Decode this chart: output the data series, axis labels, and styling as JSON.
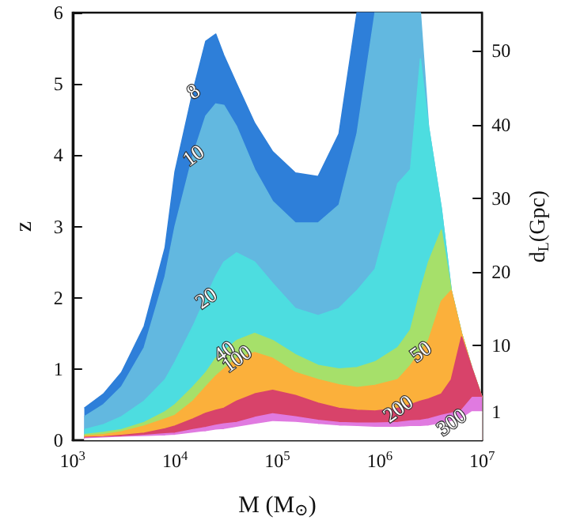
{
  "chart_data": {
    "type": "area",
    "stacked": true,
    "xlabel": "M (M$_{⊙}$)",
    "ylabel": "z",
    "y2label": "d$_{L}$(Gpc)",
    "log": "x",
    "grid": false,
    "xlim": [
      1000,
      10000000
    ],
    "xticks": [
      {
        "value": 1000,
        "label": "10$^{3}$"
      },
      {
        "value": 10000,
        "label": "10$^{4}$"
      },
      {
        "value": 100000,
        "label": "10$^{5}$"
      },
      {
        "value": 1000000,
        "label": "10$^{6}$"
      },
      {
        "value": 10000000,
        "label": "10$^{7}$"
      }
    ],
    "ylim": [
      0,
      6
    ],
    "yticks": [
      0,
      1,
      2,
      3,
      4,
      5,
      6
    ],
    "y2lim": [
      -2.9,
      55.2
    ],
    "y2ticks": [
      1,
      10,
      20,
      30,
      40,
      50
    ],
    "x": [
      1300,
      2000,
      3000,
      5000,
      8000,
      10000,
      15000,
      20000,
      25000,
      30000,
      40000,
      60000,
      90000,
      150000,
      250000,
      400000,
      600000,
      900000,
      1500000,
      2000000,
      2500000,
      3000000,
      4000000,
      5000000,
      6300000,
      8000000,
      10000000
    ],
    "series": [
      {
        "color": "#ffffff",
        "values": [
          0.02,
          0.03,
          0.04,
          0.05,
          0.06,
          0.07,
          0.1,
          0.12,
          0.14,
          0.15,
          0.18,
          0.22,
          0.26,
          0.25,
          0.22,
          0.2,
          0.19,
          0.18,
          0.18,
          0.19,
          0.19,
          0.2,
          0.23,
          0.26,
          0.3,
          0.4,
          0.4
        ]
      },
      {
        "color": "#e07ae0",
        "values": [
          0.01,
          0.01,
          0.01,
          0.02,
          0.03,
          0.03,
          0.05,
          0.06,
          0.07,
          0.08,
          0.07,
          0.1,
          0.11,
          0.08,
          0.06,
          0.05,
          0.05,
          0.06,
          0.07,
          0.08,
          0.09,
          0.1,
          0.12,
          0.12,
          0.12,
          0.2,
          0.2
        ]
      },
      {
        "color": "#d8436a",
        "values": [
          0.01,
          0.01,
          0.02,
          0.03,
          0.07,
          0.1,
          0.15,
          0.2,
          0.21,
          0.22,
          0.3,
          0.33,
          0.33,
          0.3,
          0.24,
          0.2,
          0.18,
          0.17,
          0.2,
          0.23,
          0.27,
          0.28,
          0.3,
          0.47,
          1.03,
          0.4,
          0
        ]
      },
      {
        "color": "#fbb03b",
        "values": [
          0.02,
          0.03,
          0.05,
          0.1,
          0.14,
          0.15,
          0.25,
          0.37,
          0.48,
          0.55,
          0.6,
          0.58,
          0.45,
          0.32,
          0.33,
          0.33,
          0.32,
          0.36,
          0.4,
          0.55,
          0.7,
          0.82,
          1.3,
          1.25,
          0.05,
          0,
          0
        ]
      },
      {
        "color": "#a6e06a",
        "values": [
          0.02,
          0.03,
          0.03,
          0.05,
          0.1,
          0.15,
          0.2,
          0.2,
          0.25,
          0.25,
          0.25,
          0.27,
          0.25,
          0.25,
          0.2,
          0.22,
          0.28,
          0.33,
          0.45,
          0.5,
          0.85,
          1.1,
          1.0,
          0,
          0,
          0,
          0
        ]
      },
      {
        "color": "#4ddde0",
        "values": [
          0.07,
          0.11,
          0.18,
          0.3,
          0.45,
          0.6,
          0.85,
          1.05,
          1.15,
          1.25,
          1.23,
          1.0,
          0.8,
          0.65,
          0.7,
          0.85,
          1.08,
          1.3,
          2.3,
          2.25,
          3.25,
          1.9,
          0.3,
          0,
          0,
          0,
          0
        ]
      },
      {
        "color": "#62b8e0",
        "values": [
          0.18,
          0.28,
          0.42,
          0.75,
          1.45,
          1.9,
          2.4,
          2.55,
          2.42,
          2.2,
          1.77,
          1.3,
          1.15,
          1.2,
          1.3,
          1.45,
          2.2,
          3.6,
          2.4,
          2.2,
          0.65,
          0,
          0,
          0,
          0,
          0,
          0
        ]
      },
      {
        "color": "#2e7fd9",
        "values": [
          0.12,
          0.15,
          0.2,
          0.3,
          0.4,
          0.77,
          0.9,
          1.05,
          0.98,
          0.7,
          0.6,
          0.65,
          0.7,
          0.7,
          0.65,
          1.0,
          1.7,
          0,
          null,
          null,
          null,
          null,
          null,
          null,
          null,
          null,
          null
        ]
      }
    ],
    "annotations": [
      {
        "text": "8",
        "x": 15000,
        "y": 4.9
      },
      {
        "text": "10",
        "x": 15000,
        "y": 4.0
      },
      {
        "text": "20",
        "x": 20000,
        "y": 2.0
      },
      {
        "text": "40",
        "x": 30000,
        "y": 1.25
      },
      {
        "text": "100",
        "x": 40000,
        "y": 1.15
      },
      {
        "text": "50",
        "x": 2500000,
        "y": 1.25
      },
      {
        "text": "200",
        "x": 1500000,
        "y": 0.45
      },
      {
        "text": "300",
        "x": 5000000,
        "y": 0.26
      }
    ]
  }
}
